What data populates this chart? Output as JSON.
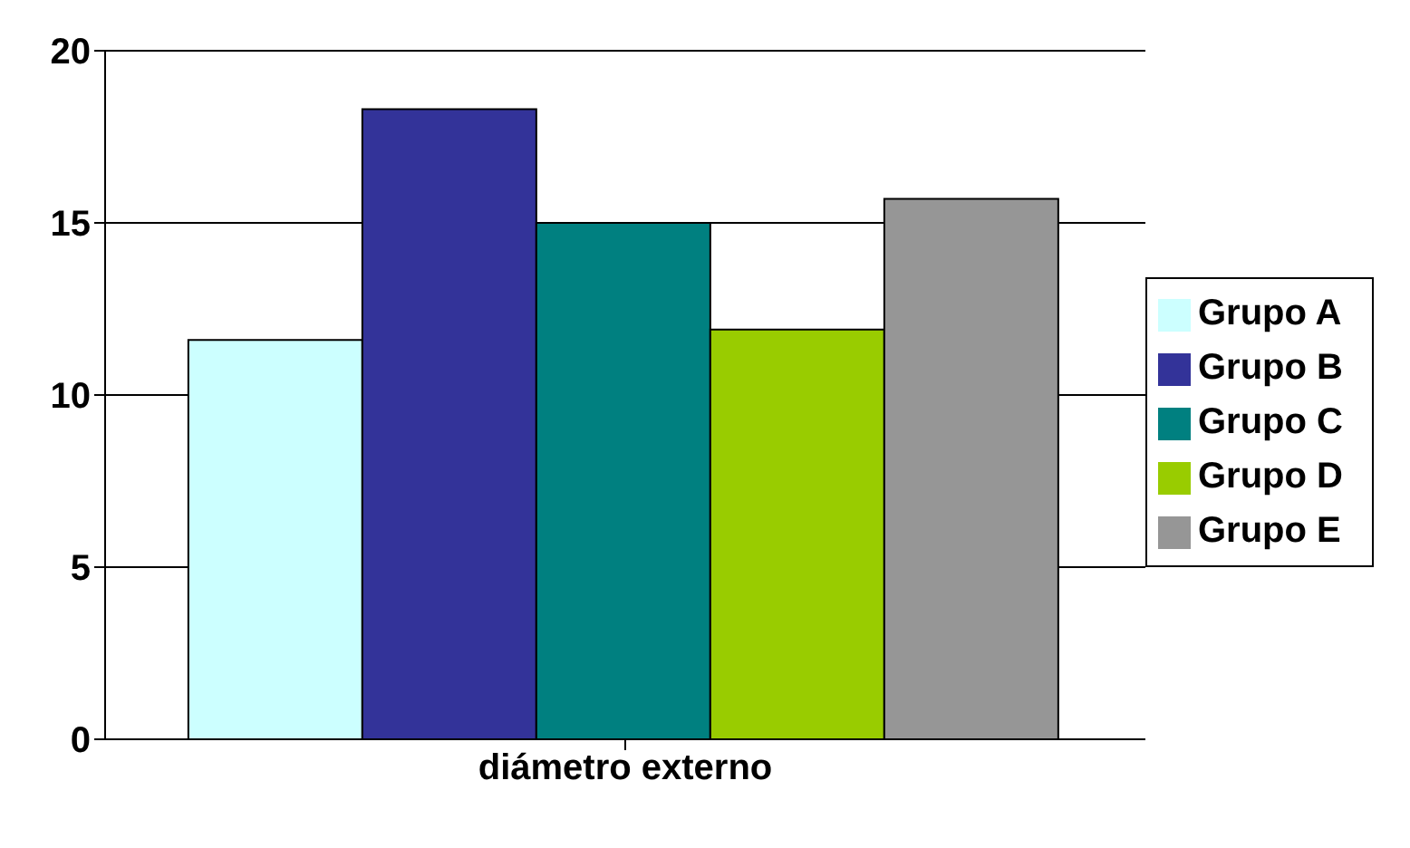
{
  "chart_data": {
    "type": "bar",
    "categories": [
      "diámetro externo"
    ],
    "series": [
      {
        "name": "Grupo A",
        "color": "#ccffff",
        "values": [
          11.6
        ]
      },
      {
        "name": "Grupo B",
        "color": "#333399",
        "values": [
          18.3
        ]
      },
      {
        "name": "Grupo C",
        "color": "#008080",
        "values": [
          15.0
        ]
      },
      {
        "name": "Grupo D",
        "color": "#99cc00",
        "values": [
          11.9
        ]
      },
      {
        "name": "Grupo E",
        "color": "#969696",
        "values": [
          15.7
        ]
      }
    ],
    "ylim": [
      0,
      20
    ],
    "yticks": [
      0,
      5,
      10,
      15,
      20
    ],
    "grid": "y",
    "legend": "right"
  }
}
